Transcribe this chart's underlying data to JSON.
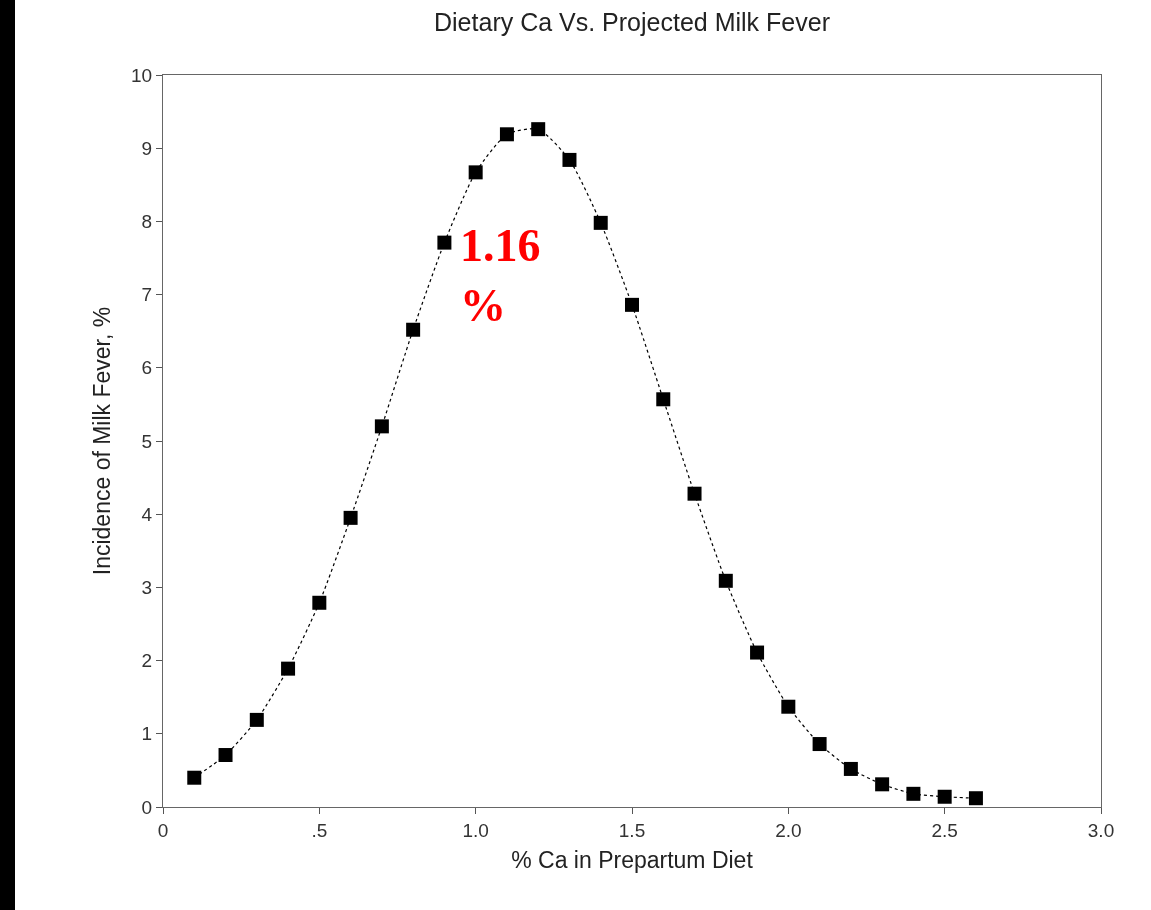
{
  "chart_data": {
    "type": "line",
    "title": "Dietary Ca Vs. Projected Milk Fever",
    "xlabel": "% Ca in Prepartum Diet",
    "ylabel": "Incidence of Milk Fever, %",
    "x": [
      0.1,
      0.2,
      0.3,
      0.4,
      0.5,
      0.6,
      0.7,
      0.8,
      0.9,
      1.0,
      1.1,
      1.2,
      1.3,
      1.4,
      1.5,
      1.6,
      1.7,
      1.8,
      1.9,
      2.0,
      2.1,
      2.2,
      2.3,
      2.4,
      2.5,
      2.6
    ],
    "series": [
      {
        "color": "#000000",
        "values": [
          0.4,
          0.71,
          1.19,
          1.89,
          2.79,
          3.95,
          5.2,
          6.52,
          7.71,
          8.67,
          9.19,
          9.26,
          8.84,
          7.98,
          6.86,
          5.57,
          4.28,
          3.09,
          2.11,
          1.37,
          0.86,
          0.52,
          0.31,
          0.18,
          0.14,
          0.12
        ]
      }
    ],
    "xlim": [
      0,
      3
    ],
    "xticks": [
      0,
      {
        "value": 0.5,
        "label": ".5"
      },
      {
        "value": 1,
        "label": "1.0"
      },
      1.5,
      {
        "value": 2,
        "label": "2.0"
      },
      2.5,
      {
        "value": 3,
        "label": "3.0"
      }
    ],
    "ylim": [
      0,
      10
    ],
    "yticks": [
      0,
      1,
      2,
      3,
      4,
      5,
      6,
      7,
      8,
      9,
      10
    ],
    "annotations": [
      "1.16\n%"
    ],
    "marker": "square",
    "line_style": "dotted",
    "grid": false
  }
}
